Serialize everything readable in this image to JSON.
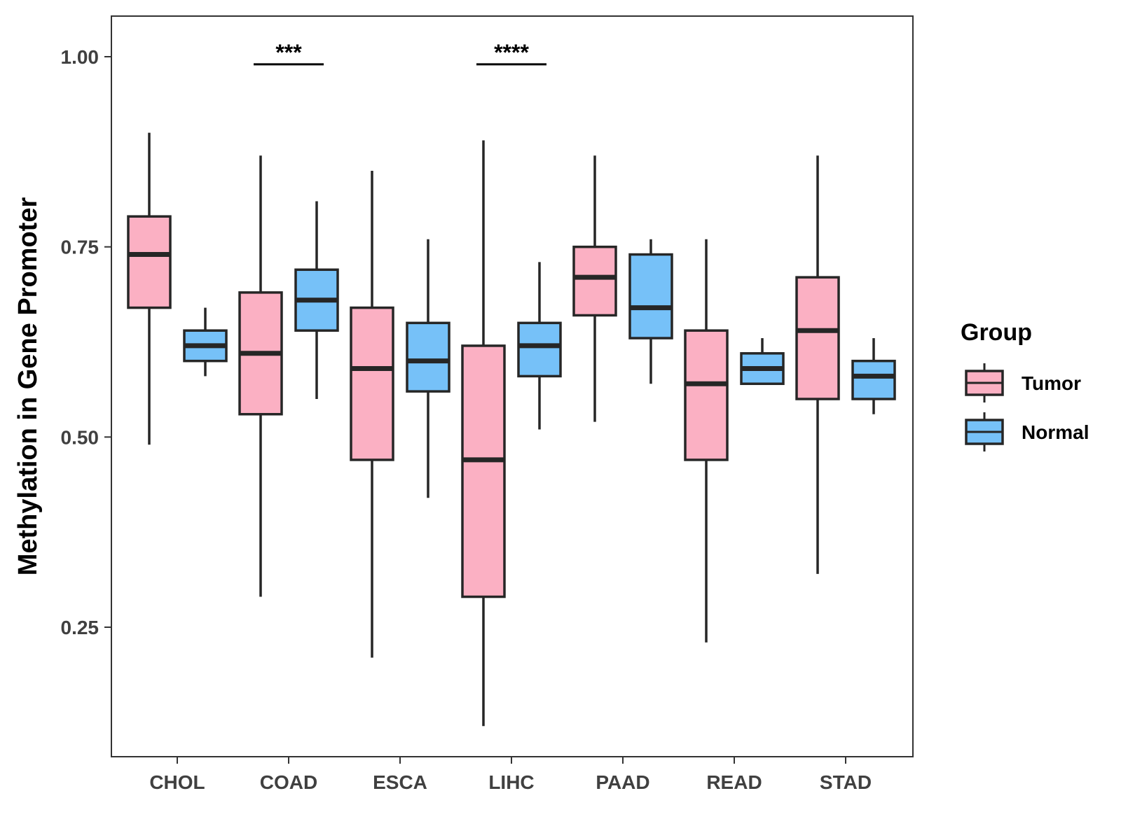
{
  "chart_data": {
    "type": "boxplot",
    "ylabel": "Methylation in Gene Promoter",
    "xlabel": "",
    "ylim": [
      0.1,
      1.05
    ],
    "yticks": [
      0.25,
      0.5,
      0.75,
      1.0
    ],
    "ytick_labels": [
      "0.25",
      "0.50",
      "0.75",
      "1.00"
    ],
    "categories": [
      "CHOL",
      "COAD",
      "ESCA",
      "LIHC",
      "PAAD",
      "READ",
      "STAD"
    ],
    "legend": {
      "title": "Group",
      "position": "right",
      "entries": [
        {
          "name": "Tumor",
          "color": "#FBB0C3"
        },
        {
          "name": "Normal",
          "color": "#76C1F8"
        }
      ]
    },
    "series": [
      {
        "name": "Tumor",
        "color": "#FBB0C3",
        "boxes": [
          {
            "min": 0.49,
            "q1": 0.67,
            "median": 0.74,
            "q3": 0.79,
            "max": 0.9
          },
          {
            "min": 0.29,
            "q1": 0.53,
            "median": 0.61,
            "q3": 0.69,
            "max": 0.87
          },
          {
            "min": 0.21,
            "q1": 0.47,
            "median": 0.59,
            "q3": 0.67,
            "max": 0.85
          },
          {
            "min": 0.12,
            "q1": 0.29,
            "median": 0.47,
            "q3": 0.62,
            "max": 0.89
          },
          {
            "min": 0.52,
            "q1": 0.66,
            "median": 0.71,
            "q3": 0.75,
            "max": 0.87
          },
          {
            "min": 0.23,
            "q1": 0.47,
            "median": 0.57,
            "q3": 0.64,
            "max": 0.76
          },
          {
            "min": 0.32,
            "q1": 0.55,
            "median": 0.64,
            "q3": 0.71,
            "max": 0.87
          }
        ]
      },
      {
        "name": "Normal",
        "color": "#76C1F8",
        "boxes": [
          {
            "min": 0.58,
            "q1": 0.6,
            "median": 0.62,
            "q3": 0.64,
            "max": 0.67
          },
          {
            "min": 0.55,
            "q1": 0.64,
            "median": 0.68,
            "q3": 0.72,
            "max": 0.81
          },
          {
            "min": 0.42,
            "q1": 0.56,
            "median": 0.6,
            "q3": 0.65,
            "max": 0.76
          },
          {
            "min": 0.51,
            "q1": 0.58,
            "median": 0.62,
            "q3": 0.65,
            "max": 0.73
          },
          {
            "min": 0.57,
            "q1": 0.63,
            "median": 0.67,
            "q3": 0.74,
            "max": 0.76
          },
          {
            "min": 0.57,
            "q1": 0.57,
            "median": 0.59,
            "q3": 0.61,
            "max": 0.63
          },
          {
            "min": 0.53,
            "q1": 0.55,
            "median": 0.58,
            "q3": 0.6,
            "max": 0.63
          }
        ]
      }
    ],
    "annotations": [
      {
        "category": "COAD",
        "label": "***",
        "y": 0.99
      },
      {
        "category": "LIHC",
        "label": "****",
        "y": 0.99
      }
    ]
  }
}
